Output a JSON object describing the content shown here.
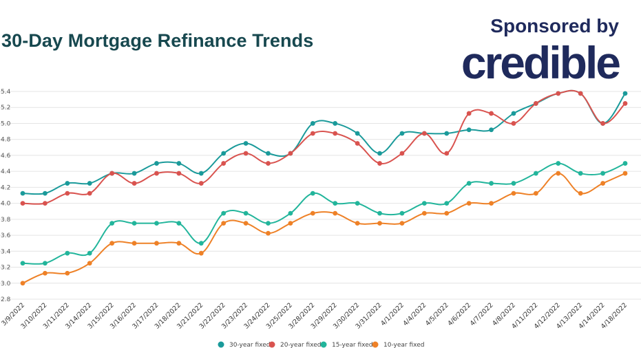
{
  "header": {
    "title": "30-Day Mortgage Refinance Trends",
    "sponsor_label": "Sponsored by",
    "brand": "credible"
  },
  "colors": {
    "title": "#17484f",
    "brand": "#1f2a5c",
    "grid": "#e4e4e4"
  },
  "chart_data": {
    "type": "line",
    "title": "",
    "xlabel": "",
    "ylabel": "",
    "ylim": [
      2.8,
      5.4
    ],
    "yticks": [
      "2.8",
      "3.0",
      "3.2",
      "3.4",
      "3.6",
      "3.8",
      "4.0",
      "4.2",
      "4.4",
      "4.6",
      "4.8",
      "5.0",
      "5.2",
      "5.4"
    ],
    "grid": true,
    "legend_position": "bottom",
    "categories": [
      "3/9/2022",
      "3/10/2022",
      "3/11/2022",
      "3/14/2022",
      "3/15/2022",
      "3/16/2022",
      "3/17/2022",
      "3/18/2022",
      "3/21/2022",
      "3/22/2022",
      "3/23/2022",
      "3/24/2022",
      "3/25/2022",
      "3/28/2022",
      "3/29/2022",
      "3/30/2022",
      "3/31/2022",
      "4/1/2022",
      "4/4/2022",
      "4/5/2022",
      "4/6/2022",
      "4/7/2022",
      "4/8/2022",
      "4/11/2022",
      "4/12/2022",
      "4/13/2022",
      "4/14/2022",
      "4/18/2022"
    ],
    "series": [
      {
        "name": "30-year fixed",
        "color": "#1a9a9a",
        "values": [
          4.125,
          4.125,
          4.25,
          4.25,
          4.375,
          4.375,
          4.5,
          4.5,
          4.375,
          4.625,
          4.75,
          4.625,
          4.625,
          5.0,
          5.0,
          4.875,
          4.625,
          4.875,
          4.875,
          4.875,
          4.92,
          4.92,
          5.125,
          5.25,
          5.375,
          5.375,
          5.0,
          5.375
        ]
      },
      {
        "name": "20-year fixed",
        "color": "#d9534f",
        "values": [
          4.0,
          4.0,
          4.125,
          4.125,
          4.375,
          4.25,
          4.375,
          4.375,
          4.25,
          4.5,
          4.625,
          4.5,
          4.625,
          4.875,
          4.875,
          4.75,
          4.5,
          4.625,
          4.875,
          4.625,
          5.125,
          5.125,
          5.0,
          5.25,
          5.375,
          5.375,
          5.0,
          5.25
        ]
      },
      {
        "name": "15-year fixed",
        "color": "#22b59b",
        "values": [
          3.25,
          3.25,
          3.375,
          3.375,
          3.75,
          3.75,
          3.75,
          3.75,
          3.5,
          3.875,
          3.875,
          3.75,
          3.875,
          4.125,
          4.0,
          4.0,
          3.875,
          3.875,
          4.0,
          4.0,
          4.25,
          4.25,
          4.25,
          4.375,
          4.5,
          4.375,
          4.375,
          4.5
        ]
      },
      {
        "name": "10-year fixed",
        "color": "#ee8127",
        "values": [
          3.0,
          3.125,
          3.125,
          3.25,
          3.5,
          3.5,
          3.5,
          3.5,
          3.375,
          3.75,
          3.75,
          3.625,
          3.75,
          3.875,
          3.875,
          3.75,
          3.75,
          3.75,
          3.875,
          3.875,
          4.0,
          4.0,
          4.125,
          4.125,
          4.375,
          4.125,
          4.25,
          4.375
        ]
      }
    ]
  }
}
